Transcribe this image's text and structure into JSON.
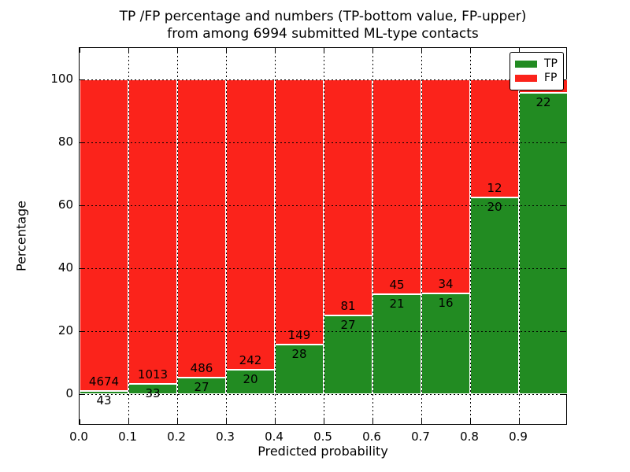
{
  "title": {
    "line1": "TP /FP percentage and numbers (TP-bottom value, FP-upper)",
    "line2": "from among 6994 submitted ML-type contacts"
  },
  "axes": {
    "xlabel": "Predicted probability",
    "ylabel": "Percentage",
    "xtick_labels": [
      "0.0",
      "0.1",
      "0.2",
      "0.3",
      "0.4",
      "0.5",
      "0.6",
      "0.7",
      "0.8",
      "0.9"
    ],
    "ytick_values": [
      0,
      20,
      40,
      60,
      80,
      100
    ],
    "xlim": [
      0,
      1.0
    ],
    "ylim": [
      -10,
      110
    ],
    "grid": "dotted black, on"
  },
  "legend": {
    "position": "upper right",
    "items": [
      {
        "label": "TP",
        "color": "#228b22"
      },
      {
        "label": "FP",
        "color": "#fb231b"
      }
    ]
  },
  "colors": {
    "tp": "#228b22",
    "fp": "#fb231b",
    "bar_edge": "#ffffff"
  },
  "chart_data": {
    "type": "bar",
    "stacked": true,
    "normalized_to_percent": true,
    "title": "TP /FP percentage and numbers (TP-bottom value, FP-upper) from among 6994 submitted ML-type contacts",
    "xlabel": "Predicted probability",
    "ylabel": "Percentage",
    "total_contacts": 6994,
    "bin_width": 0.1,
    "series_note": "Each bar spans 0.1 of predicted probability; green (TP) percentage at bottom, red (FP) percentage on top; labels show raw counts with FP count above the TP/FP boundary and TP count below it.",
    "bins": [
      {
        "x0": 0.0,
        "x1": 0.1,
        "tp": 43,
        "fp": 4674
      },
      {
        "x0": 0.1,
        "x1": 0.2,
        "tp": 33,
        "fp": 1013
      },
      {
        "x0": 0.2,
        "x1": 0.3,
        "tp": 27,
        "fp": 486
      },
      {
        "x0": 0.3,
        "x1": 0.4,
        "tp": 20,
        "fp": 242
      },
      {
        "x0": 0.4,
        "x1": 0.5,
        "tp": 28,
        "fp": 149
      },
      {
        "x0": 0.5,
        "x1": 0.6,
        "tp": 27,
        "fp": 81
      },
      {
        "x0": 0.6,
        "x1": 0.7,
        "tp": 21,
        "fp": 45
      },
      {
        "x0": 0.7,
        "x1": 0.8,
        "tp": 16,
        "fp": 34
      },
      {
        "x0": 0.8,
        "x1": 0.9,
        "tp": 20,
        "fp": 12
      },
      {
        "x0": 0.9,
        "x1": 1.0,
        "tp": 22,
        "fp": 1,
        "fp_label_hidden": true
      }
    ]
  }
}
